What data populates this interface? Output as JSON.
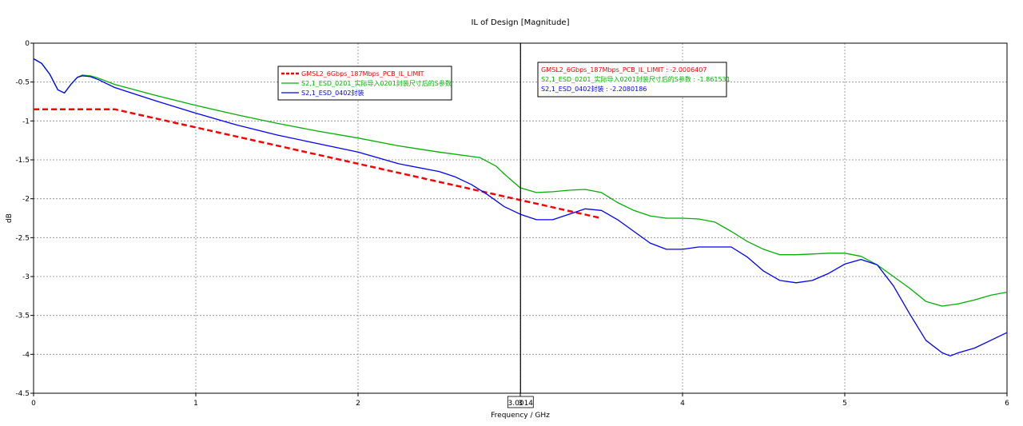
{
  "chart_data": {
    "type": "line",
    "title": "IL of Design [Magnitude]",
    "xlabel": "Frequency / GHz",
    "ylabel": "dB",
    "xlim": [
      0,
      6
    ],
    "ylim": [
      -4.5,
      0
    ],
    "x_ticks": [
      0,
      1,
      2,
      3,
      4,
      5,
      6
    ],
    "y_ticks": [
      0,
      -0.5,
      -1,
      -1.5,
      -2,
      -2.5,
      -3,
      -3.5,
      -4,
      -4.5
    ],
    "x_tick_labels": [
      "0",
      "1",
      "2",
      "3",
      "4",
      "5",
      "6"
    ],
    "y_tick_labels": [
      "0",
      "-0.5",
      "-1",
      "-1.5",
      "-2",
      "-2.5",
      "-3",
      "-3.5",
      "-4",
      "-4.5"
    ],
    "grid": true,
    "legend_position": "top-center",
    "marker": {
      "x": 3.0014,
      "label": "3.0014",
      "readouts": [
        {
          "text": "GMSL2_6Gbps_187Mbps_PCB_IL_LIMIT : -2.0006407",
          "color": "#ff0000"
        },
        {
          "text": "S2,1_ESD_0201_实际导入0201封装尺寸后的S参数 : -1.861531",
          "color": "#00b000"
        },
        {
          "text": "S2,1_ESD_0402封装 : -2.2080186",
          "color": "#0000ff"
        }
      ]
    },
    "series": [
      {
        "name": "GMSL2_6Gbps_187Mbps_PCB_IL_LIMIT",
        "color": "#ff0000",
        "style": "dashed",
        "x": [
          0,
          0.5,
          3.5
        ],
        "y": [
          -0.85,
          -0.85,
          -2.25
        ]
      },
      {
        "name": "S2,1_ESD_0201_实际导入0201封装尺寸后的S参数",
        "color": "#00b000",
        "style": "solid",
        "x": [
          0,
          0.05,
          0.1,
          0.15,
          0.19,
          0.23,
          0.27,
          0.3,
          0.35,
          0.4,
          0.5,
          0.75,
          1.0,
          1.25,
          1.5,
          1.75,
          2.0,
          2.25,
          2.5,
          2.75,
          2.85,
          2.9,
          3.0,
          3.1,
          3.2,
          3.3,
          3.4,
          3.5,
          3.6,
          3.7,
          3.8,
          3.9,
          4.0,
          4.1,
          4.2,
          4.3,
          4.4,
          4.5,
          4.6,
          4.7,
          4.8,
          4.9,
          5.0,
          5.1,
          5.2,
          5.3,
          5.4,
          5.5,
          5.6,
          5.7,
          5.8,
          5.9,
          6.0
        ],
        "y": [
          -0.2,
          -0.26,
          -0.4,
          -0.6,
          -0.64,
          -0.53,
          -0.44,
          -0.41,
          -0.42,
          -0.45,
          -0.53,
          -0.67,
          -0.8,
          -0.92,
          -1.03,
          -1.13,
          -1.22,
          -1.32,
          -1.4,
          -1.47,
          -1.58,
          -1.68,
          -1.86,
          -1.92,
          -1.91,
          -1.89,
          -1.88,
          -1.92,
          -2.05,
          -2.15,
          -2.22,
          -2.25,
          -2.25,
          -2.26,
          -2.3,
          -2.42,
          -2.55,
          -2.65,
          -2.72,
          -2.72,
          -2.71,
          -2.7,
          -2.7,
          -2.74,
          -2.85,
          -3.0,
          -3.15,
          -3.32,
          -3.38,
          -3.35,
          -3.3,
          -3.24,
          -3.2
        ]
      },
      {
        "name": "S2,1_ESD_0402封装",
        "color": "#0000ff",
        "style": "solid",
        "x": [
          0,
          0.05,
          0.1,
          0.15,
          0.19,
          0.23,
          0.27,
          0.3,
          0.35,
          0.4,
          0.5,
          0.75,
          1.0,
          1.25,
          1.5,
          1.75,
          2.0,
          2.25,
          2.5,
          2.6,
          2.7,
          2.8,
          2.9,
          3.0,
          3.1,
          3.2,
          3.3,
          3.4,
          3.5,
          3.6,
          3.7,
          3.8,
          3.9,
          4.0,
          4.1,
          4.2,
          4.3,
          4.4,
          4.5,
          4.6,
          4.7,
          4.8,
          4.9,
          5.0,
          5.1,
          5.2,
          5.3,
          5.4,
          5.5,
          5.6,
          5.65,
          5.7,
          5.8,
          5.9,
          6.0
        ],
        "y": [
          -0.2,
          -0.26,
          -0.4,
          -0.6,
          -0.64,
          -0.53,
          -0.44,
          -0.42,
          -0.43,
          -0.47,
          -0.57,
          -0.74,
          -0.9,
          -1.05,
          -1.18,
          -1.29,
          -1.4,
          -1.55,
          -1.65,
          -1.72,
          -1.82,
          -1.95,
          -2.1,
          -2.2,
          -2.27,
          -2.27,
          -2.2,
          -2.13,
          -2.15,
          -2.27,
          -2.42,
          -2.57,
          -2.65,
          -2.65,
          -2.62,
          -2.62,
          -2.62,
          -2.75,
          -2.93,
          -3.05,
          -3.08,
          -3.05,
          -2.96,
          -2.84,
          -2.78,
          -2.85,
          -3.12,
          -3.48,
          -3.82,
          -3.98,
          -4.02,
          -3.98,
          -3.92,
          -3.82,
          -3.72
        ]
      }
    ]
  }
}
